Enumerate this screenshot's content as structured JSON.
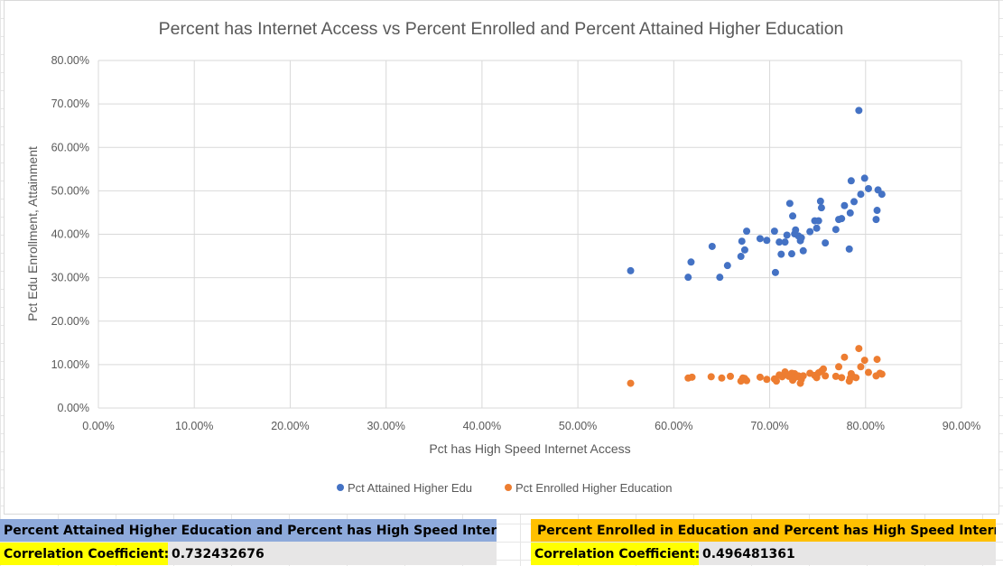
{
  "chart_data": {
    "type": "scatter",
    "title": "Percent has Internet Access vs Percent Enrolled and Percent Attained Higher Education",
    "xlabel": "Pct has High Speed Internet Access",
    "ylabel": "Pct Edu Enrollment, Attainment",
    "xlim": [
      0,
      0.9
    ],
    "ylim": [
      0,
      0.8
    ],
    "x_ticks": [
      0,
      0.1,
      0.2,
      0.3,
      0.4,
      0.5,
      0.6,
      0.7,
      0.8,
      0.9
    ],
    "x_tick_labels": [
      "0.00%",
      "10.00%",
      "20.00%",
      "30.00%",
      "40.00%",
      "50.00%",
      "60.00%",
      "70.00%",
      "80.00%",
      "90.00%"
    ],
    "y_ticks": [
      0,
      0.1,
      0.2,
      0.3,
      0.4,
      0.5,
      0.6,
      0.7,
      0.8
    ],
    "y_tick_labels": [
      "0.00%",
      "10.00%",
      "20.00%",
      "30.00%",
      "40.00%",
      "50.00%",
      "60.00%",
      "70.00%",
      "80.00%"
    ],
    "grid": true,
    "legend_position": "bottom",
    "series": [
      {
        "name": "Pct Attained Higher Edu",
        "color": "#4472c4",
        "x": [
          0.555,
          0.615,
          0.618,
          0.64,
          0.648,
          0.656,
          0.67,
          0.671,
          0.674,
          0.676,
          0.69,
          0.697,
          0.705,
          0.706,
          0.71,
          0.712,
          0.716,
          0.718,
          0.721,
          0.723,
          0.724,
          0.726,
          0.727,
          0.73,
          0.732,
          0.733,
          0.735,
          0.742,
          0.747,
          0.749,
          0.751,
          0.753,
          0.754,
          0.758,
          0.769,
          0.772,
          0.775,
          0.778,
          0.783,
          0.784,
          0.785,
          0.788,
          0.793,
          0.795,
          0.799,
          0.803,
          0.811,
          0.812,
          0.813,
          0.817
        ],
        "y": [
          0.316,
          0.301,
          0.336,
          0.372,
          0.301,
          0.328,
          0.349,
          0.384,
          0.364,
          0.407,
          0.39,
          0.386,
          0.407,
          0.312,
          0.382,
          0.354,
          0.382,
          0.398,
          0.471,
          0.355,
          0.442,
          0.401,
          0.41,
          0.396,
          0.385,
          0.392,
          0.362,
          0.406,
          0.431,
          0.414,
          0.431,
          0.476,
          0.461,
          0.38,
          0.411,
          0.434,
          0.436,
          0.466,
          0.366,
          0.449,
          0.523,
          0.475,
          0.685,
          0.492,
          0.529,
          0.505,
          0.434,
          0.455,
          0.502,
          0.492
        ]
      },
      {
        "name": "Pct Enrolled Higher Education",
        "color": "#ed7d31",
        "x": [
          0.555,
          0.615,
          0.619,
          0.639,
          0.65,
          0.659,
          0.67,
          0.672,
          0.674,
          0.676,
          0.69,
          0.697,
          0.705,
          0.707,
          0.71,
          0.713,
          0.716,
          0.718,
          0.72,
          0.723,
          0.724,
          0.726,
          0.727,
          0.73,
          0.732,
          0.733,
          0.735,
          0.742,
          0.747,
          0.749,
          0.751,
          0.754,
          0.756,
          0.758,
          0.769,
          0.772,
          0.775,
          0.778,
          0.783,
          0.784,
          0.785,
          0.787,
          0.79,
          0.793,
          0.795,
          0.799,
          0.803,
          0.811,
          0.812,
          0.815,
          0.817
        ],
        "y": [
          0.057,
          0.069,
          0.071,
          0.072,
          0.069,
          0.073,
          0.062,
          0.069,
          0.068,
          0.063,
          0.071,
          0.066,
          0.067,
          0.062,
          0.076,
          0.072,
          0.083,
          0.077,
          0.073,
          0.08,
          0.064,
          0.079,
          0.071,
          0.074,
          0.057,
          0.066,
          0.074,
          0.08,
          0.075,
          0.07,
          0.081,
          0.085,
          0.09,
          0.074,
          0.073,
          0.095,
          0.07,
          0.117,
          0.062,
          0.069,
          0.079,
          0.072,
          0.07,
          0.137,
          0.095,
          0.11,
          0.082,
          0.074,
          0.112,
          0.08,
          0.078
        ]
      }
    ]
  },
  "table": {
    "left_header": "Percent Attained Higher Education and Percent has High Speed Internet",
    "left_label": "Correlation Coefficient:",
    "left_value": "0.732432676",
    "right_header": "Percent Enrolled in Education and Percent has High Speed Internet",
    "right_label": "Correlation Coefficient:",
    "right_value": "0.496481361"
  }
}
